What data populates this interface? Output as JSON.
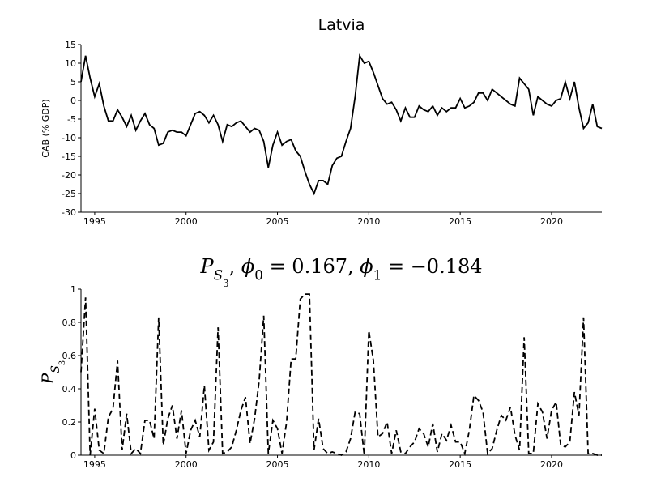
{
  "chart_data": [
    {
      "type": "line",
      "title": "Latvia",
      "ylabel": "CAB (% GDP)",
      "x": [
        1994.25,
        1994.5,
        1994.75,
        1995,
        1995.25,
        1995.5,
        1995.75,
        1996,
        1996.25,
        1996.5,
        1996.75,
        1997,
        1997.25,
        1997.5,
        1997.75,
        1998,
        1998.25,
        1998.5,
        1998.75,
        1999,
        1999.25,
        1999.5,
        1999.75,
        2000,
        2000.25,
        2000.5,
        2000.75,
        2001,
        2001.25,
        2001.5,
        2001.75,
        2002,
        2002.25,
        2002.5,
        2002.75,
        2003,
        2003.25,
        2003.5,
        2003.75,
        2004,
        2004.25,
        2004.5,
        2004.75,
        2005,
        2005.25,
        2005.5,
        2005.75,
        2006,
        2006.25,
        2006.5,
        2006.75,
        2007,
        2007.25,
        2007.5,
        2007.75,
        2008,
        2008.25,
        2008.5,
        2008.75,
        2009,
        2009.25,
        2009.5,
        2009.75,
        2010,
        2010.25,
        2010.5,
        2010.75,
        2011,
        2011.25,
        2011.5,
        2011.75,
        2012,
        2012.25,
        2012.5,
        2012.75,
        2013,
        2013.25,
        2013.5,
        2013.75,
        2014,
        2014.25,
        2014.5,
        2014.75,
        2015,
        2015.25,
        2015.5,
        2015.75,
        2016,
        2016.25,
        2016.5,
        2016.75,
        2017,
        2017.25,
        2017.5,
        2017.75,
        2018,
        2018.25,
        2018.5,
        2018.75,
        2019,
        2019.25,
        2019.5,
        2019.75,
        2020,
        2020.25,
        2020.5,
        2020.75,
        2021,
        2021.25,
        2021.5,
        2021.75,
        2022,
        2022.25,
        2022.5,
        2022.75
      ],
      "series": [
        {
          "color": "#000000",
          "linestyle": "solid",
          "values": [
            5,
            12,
            6,
            1,
            4.5,
            -1.5,
            -5.5,
            -5.5,
            -2.5,
            -4.5,
            -7,
            -4,
            -8,
            -5.5,
            -3.5,
            -6.5,
            -7.5,
            -12,
            -11.5,
            -8.5,
            -8,
            -8.5,
            -8.5,
            -9.5,
            -6.5,
            -3.5,
            -3,
            -4,
            -6,
            -4,
            -6.5,
            -11,
            -6.5,
            -7,
            -6,
            -5.5,
            -7,
            -8.5,
            -7.5,
            -8,
            -11,
            -18,
            -12,
            -8.5,
            -12,
            -11,
            -10.5,
            -13.5,
            -15,
            -19,
            -22.5,
            -25,
            -21.5,
            -21.5,
            -22.5,
            -17.5,
            -15.5,
            -15,
            -11,
            -7.5,
            1,
            12,
            10,
            10.5,
            7.5,
            4,
            0.5,
            -1,
            -0.5,
            -2.5,
            -5.5,
            -2,
            -4.5,
            -4.5,
            -1.5,
            -2.5,
            -3,
            -1.5,
            -4,
            -2,
            -3,
            -2,
            -2,
            0.5,
            -2,
            -1.5,
            -0.5,
            2,
            2,
            0,
            3,
            2,
            1,
            0,
            -1,
            -1.5,
            6,
            4.5,
            3,
            -4,
            1,
            0,
            -1,
            -1.5,
            0,
            0.5,
            5,
            0.5,
            5,
            -2,
            -7.5,
            -6,
            -1,
            -7,
            -7.5
          ]
        }
      ],
      "xlim": [
        1994.25,
        2022.75
      ],
      "xticks": [
        1995,
        2000,
        2005,
        2010,
        2015,
        2020
      ],
      "ylim": [
        -30,
        15
      ],
      "yticks": [
        15,
        10,
        5,
        0,
        -5,
        -10,
        -15,
        -20,
        -25,
        -30
      ]
    },
    {
      "type": "line",
      "title_parts": [
        "P",
        "S",
        "3",
        ", ",
        "ϕ",
        "0",
        " = 0.167, ",
        "ϕ",
        "1",
        " = −0.184"
      ],
      "ylabel_parts": [
        "P",
        "S",
        "3"
      ],
      "x": [
        1994.25,
        1994.5,
        1994.75,
        1995,
        1995.25,
        1995.5,
        1995.75,
        1996,
        1996.25,
        1996.5,
        1996.75,
        1997,
        1997.25,
        1997.5,
        1997.75,
        1998,
        1998.25,
        1998.5,
        1998.75,
        1999,
        1999.25,
        1999.5,
        1999.75,
        2000,
        2000.25,
        2000.5,
        2000.75,
        2001,
        2001.25,
        2001.5,
        2001.75,
        2002,
        2002.25,
        2002.5,
        2002.75,
        2003,
        2003.25,
        2003.5,
        2003.75,
        2004,
        2004.25,
        2004.5,
        2004.75,
        2005,
        2005.25,
        2005.5,
        2005.75,
        2006,
        2006.25,
        2006.5,
        2006.75,
        2007,
        2007.25,
        2007.5,
        2007.75,
        2008,
        2008.25,
        2008.5,
        2008.75,
        2009,
        2009.25,
        2009.5,
        2009.75,
        2010,
        2010.25,
        2010.5,
        2010.75,
        2011,
        2011.25,
        2011.5,
        2011.75,
        2012,
        2012.25,
        2012.5,
        2012.75,
        2013,
        2013.25,
        2013.5,
        2013.75,
        2014,
        2014.25,
        2014.5,
        2014.75,
        2015,
        2015.25,
        2015.5,
        2015.75,
        2016,
        2016.25,
        2016.5,
        2016.75,
        2017,
        2017.25,
        2017.5,
        2017.75,
        2018,
        2018.25,
        2018.5,
        2018.75,
        2019,
        2019.25,
        2019.5,
        2019.75,
        2020,
        2020.25,
        2020.5,
        2020.75,
        2021,
        2021.25,
        2021.5,
        2021.75,
        2022,
        2022.25,
        2022.5,
        2022.75
      ],
      "series": [
        {
          "color": "#000000",
          "linestyle": "dashed",
          "values": [
            0.5,
            0.95,
            0,
            0.28,
            0.03,
            0.01,
            0.23,
            0.28,
            0.57,
            0.03,
            0.25,
            0.01,
            0.04,
            0.01,
            0.21,
            0.21,
            0.1,
            0.83,
            0.06,
            0.22,
            0.3,
            0.1,
            0.27,
            0.01,
            0.15,
            0.21,
            0.11,
            0.42,
            0.03,
            0.08,
            0.77,
            0.01,
            0.02,
            0.05,
            0.15,
            0.27,
            0.35,
            0.07,
            0.22,
            0.45,
            0.84,
            0.01,
            0.21,
            0.16,
            0.01,
            0.2,
            0.58,
            0.58,
            0.94,
            0.97,
            0.97,
            0.03,
            0.22,
            0.04,
            0.01,
            0.02,
            0.01,
            0,
            0.02,
            0.1,
            0.26,
            0.25,
            0,
            0.75,
            0.57,
            0.11,
            0.13,
            0.2,
            0.01,
            0.15,
            0.02,
            0.01,
            0.05,
            0.08,
            0.16,
            0.13,
            0.05,
            0.19,
            0.02,
            0.13,
            0.09,
            0.18,
            0.08,
            0.08,
            0.01,
            0.15,
            0.36,
            0.33,
            0.26,
            0.01,
            0.04,
            0.15,
            0.24,
            0.21,
            0.29,
            0.12,
            0.03,
            0.71,
            0.01,
            0.01,
            0.31,
            0.26,
            0.1,
            0.27,
            0.32,
            0.06,
            0.05,
            0.08,
            0.38,
            0.24,
            0.83,
            0.01,
            0.01,
            0,
            0
          ]
        }
      ],
      "xlim": [
        1994.25,
        2022.75
      ],
      "xticks": [
        1995,
        2000,
        2005,
        2010,
        2015,
        2020
      ],
      "ylim": [
        0,
        1
      ],
      "yticks": [
        0,
        0.2,
        0.4,
        0.6,
        0.8,
        1
      ]
    }
  ]
}
